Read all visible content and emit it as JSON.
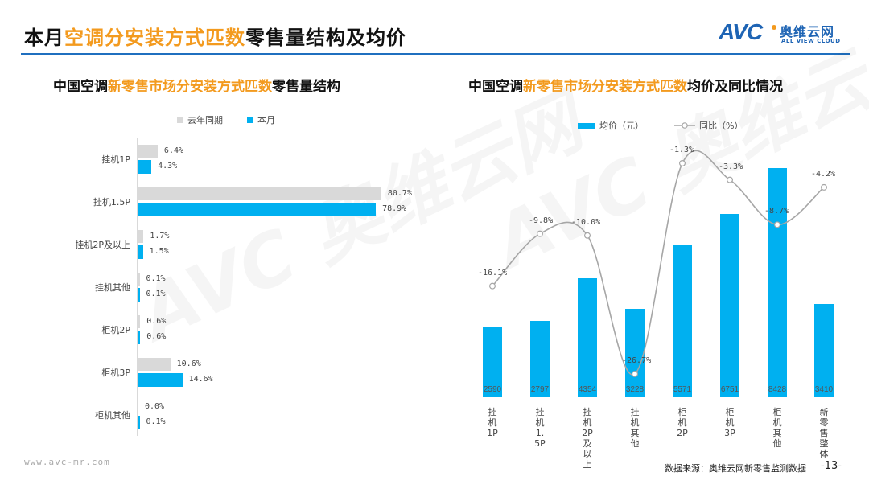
{
  "header": {
    "title_prefix": "本月",
    "title_highlight": "空调分安装方式匹数",
    "title_suffix": "零售量结构及均价",
    "logo": {
      "mark": "AVC",
      "cn": "奥维云网",
      "en": "ALL VIEW CLOUD"
    },
    "accent_color": "#1f6fbf",
    "highlight_color": "#f39a1e"
  },
  "footer": {
    "url": "www.avc-mr.com",
    "source": "数据来源：奥维云网新零售监测数据",
    "page": "-13-"
  },
  "watermark": {
    "mark": "AVC",
    "cn": "奥维云网",
    "en": "ALL VIEW CLOUD"
  },
  "left_chart": {
    "title_prefix": "中国空调",
    "title_highlight": "新零售市场分安装方式匹数",
    "title_suffix": "零售量结构",
    "legend": [
      {
        "label": "去年同期",
        "color": "#d9d9d9"
      },
      {
        "label": "本月",
        "color": "#00b0f0"
      }
    ],
    "rows": [
      {
        "category": "挂机1P",
        "last_year": "6.4%",
        "this_month": "4.3%"
      },
      {
        "category": "挂机1.5P",
        "last_year": "80.7%",
        "this_month": "78.9%"
      },
      {
        "category": "挂机2P及以上",
        "last_year": "1.7%",
        "this_month": "1.5%"
      },
      {
        "category": "挂机其他",
        "last_year": "0.1%",
        "this_month": "0.1%"
      },
      {
        "category": "柜机2P",
        "last_year": "0.6%",
        "this_month": "0.6%"
      },
      {
        "category": "柜机3P",
        "last_year": "10.6%",
        "this_month": "14.6%"
      },
      {
        "category": "柜机其他",
        "last_year": "0.0%",
        "this_month": "0.1%"
      }
    ]
  },
  "right_chart": {
    "title_prefix": "中国空调",
    "title_highlight": "新零售市场分安装方式匹数",
    "title_suffix": "均价及同比情况",
    "legend": [
      {
        "label": "均价（元）",
        "color": "#00b0f0",
        "type": "bar"
      },
      {
        "label": "同比（%）",
        "color": "#a6a6a6",
        "type": "line"
      }
    ],
    "rows": [
      {
        "category": "挂机1P",
        "price": "2590",
        "yoy": "-16.1%"
      },
      {
        "category": "挂机1.5P",
        "price": "2797",
        "yoy": "-9.8%"
      },
      {
        "category": "挂机2P及以上",
        "price": "4354",
        "yoy": "-10.0%"
      },
      {
        "category": "挂机其他",
        "price": "3228",
        "yoy": "-26.7%"
      },
      {
        "category": "柜机2P",
        "price": "5571",
        "yoy": "-1.3%"
      },
      {
        "category": "柜机3P",
        "price": "6751",
        "yoy": "-3.3%"
      },
      {
        "category": "柜机其他",
        "price": "8428",
        "yoy": "-8.7%"
      },
      {
        "category": "新零售整体",
        "price": "3410",
        "yoy": "-4.2%"
      }
    ]
  },
  "chart_data": [
    {
      "type": "bar",
      "orientation": "horizontal",
      "title": "中国空调新零售市场分安装方式匹数零售量结构",
      "categories": [
        "挂机1P",
        "挂机1.5P",
        "挂机2P及以上",
        "挂机其他",
        "柜机2P",
        "柜机3P",
        "柜机其他"
      ],
      "series": [
        {
          "name": "去年同期",
          "color": "#d9d9d9",
          "values": [
            6.4,
            80.7,
            1.7,
            0.1,
            0.6,
            10.6,
            0.0
          ]
        },
        {
          "name": "本月",
          "color": "#00b0f0",
          "values": [
            4.3,
            78.9,
            1.5,
            0.1,
            0.6,
            14.6,
            0.1
          ]
        }
      ],
      "unit": "%",
      "xlabel": "",
      "ylabel": "",
      "legend_position": "top",
      "grid": false
    },
    {
      "type": "bar+line",
      "title": "中国空调新零售市场分安装方式匹数均价及同比情况",
      "categories": [
        "挂机1P",
        "挂机1.5P",
        "挂机2P及以上",
        "挂机其他",
        "柜机2P",
        "柜机3P",
        "柜机其他",
        "新零售整体"
      ],
      "series": [
        {
          "name": "均价（元）",
          "type": "bar",
          "color": "#00b0f0",
          "values": [
            2590,
            2797,
            4354,
            3228,
            5571,
            6751,
            8428,
            3410
          ]
        },
        {
          "name": "同比（%）",
          "type": "line",
          "smooth": true,
          "color": "#a6a6a6",
          "values": [
            -16.1,
            -9.8,
            -10.0,
            -26.7,
            -1.3,
            -3.3,
            -8.7,
            -4.2
          ]
        }
      ],
      "xlabel": "",
      "ylabel": "",
      "legend_position": "top",
      "grid": false
    }
  ]
}
